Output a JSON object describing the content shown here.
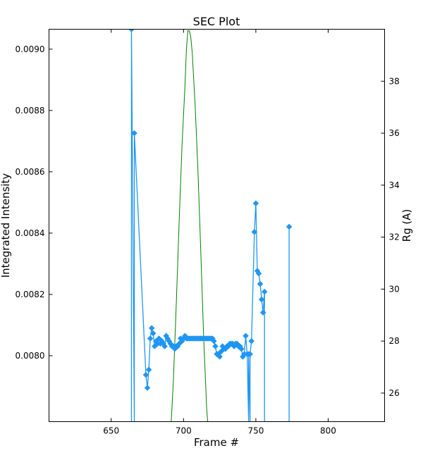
{
  "chart_data": {
    "type": "line",
    "title": "SEC Plot",
    "xlabel": "Frame #",
    "ylabel_left": "Integrated Intensity",
    "ylabel_right": "Rg (A)",
    "xlim": [
      607,
      839
    ],
    "ylim_left": [
      0.007785,
      0.009065
    ],
    "ylim_right": [
      24.9,
      40.0
    ],
    "x_ticks": [
      {
        "value": 650,
        "label": "650"
      },
      {
        "value": 700,
        "label": "700"
      },
      {
        "value": 750,
        "label": "750"
      },
      {
        "value": 800,
        "label": "800"
      }
    ],
    "y_left_ticks": [
      {
        "value": 0.008,
        "label": "0.0080"
      },
      {
        "value": 0.0082,
        "label": "0.0082"
      },
      {
        "value": 0.0084,
        "label": "0.0084"
      },
      {
        "value": 0.0086,
        "label": "0.0086"
      },
      {
        "value": 0.0088,
        "label": "0.0088"
      },
      {
        "value": 0.009,
        "label": "0.0090"
      }
    ],
    "y_right_ticks": [
      {
        "value": 26,
        "label": "26"
      },
      {
        "value": 28,
        "label": "28"
      },
      {
        "value": 30,
        "label": "30"
      },
      {
        "value": 32,
        "label": "32"
      },
      {
        "value": 34,
        "label": "34"
      },
      {
        "value": 36,
        "label": "36"
      },
      {
        "value": 38,
        "label": "38"
      }
    ],
    "grid": false,
    "series": [
      {
        "axis": "left",
        "color": "#008000",
        "marker": "none",
        "x": [
          691,
          693,
          695,
          697,
          699,
          701,
          702,
          703,
          704,
          705,
          706,
          708,
          710,
          712,
          714,
          716,
          718
        ],
        "y": [
          0.00774,
          0.00792,
          0.00817,
          0.00844,
          0.00869,
          0.00888,
          0.009,
          0.00906,
          0.00906,
          0.00904,
          0.00899,
          0.00882,
          0.0086,
          0.00833,
          0.00805,
          0.00783,
          0.0077
        ]
      },
      {
        "axis": "right",
        "color": "#1f96f3",
        "marker": "diamond",
        "x": [
          664,
          664,
          666,
          666,
          674,
          675,
          676,
          677,
          678,
          679,
          680,
          681,
          682,
          683,
          684,
          685,
          686,
          687,
          688,
          689,
          690,
          691,
          692,
          693,
          694,
          695,
          696,
          697,
          698,
          699,
          700,
          701,
          702,
          703,
          704,
          705,
          706,
          707,
          708,
          709,
          710,
          711,
          712,
          713,
          714,
          715,
          716,
          717,
          718,
          719,
          720,
          721,
          722,
          723,
          724,
          725,
          726,
          727,
          728,
          729,
          730,
          731,
          732,
          733,
          734,
          735,
          736,
          737,
          738,
          739,
          740,
          741,
          742,
          743,
          744,
          745,
          745,
          746,
          746,
          747,
          749,
          750,
          751,
          752,
          753,
          754,
          755,
          756,
          756,
          773,
          773
        ],
        "y": [
          24.9,
          40.0,
          24.9,
          36.0,
          26.7,
          26.2,
          26.9,
          28.1,
          28.5,
          28.3,
          27.8,
          28.0,
          27.9,
          28.1,
          27.9,
          28.0,
          27.9,
          27.8,
          28.2,
          28.1,
          28.0,
          27.9,
          27.8,
          27.8,
          27.7,
          27.8,
          27.8,
          27.9,
          28.1,
          28.0,
          28.1,
          28.2,
          28.1,
          28.1,
          28.1,
          28.1,
          28.1,
          28.1,
          28.1,
          28.1,
          28.1,
          28.1,
          28.1,
          28.1,
          28.1,
          28.1,
          28.1,
          28.1,
          28.1,
          28.1,
          28.1,
          28.0,
          27.8,
          27.5,
          27.5,
          27.4,
          27.6,
          27.8,
          27.7,
          27.7,
          27.8,
          27.8,
          27.9,
          27.9,
          27.9,
          27.8,
          27.9,
          27.9,
          27.8,
          27.8,
          27.7,
          27.4,
          27.5,
          28.2,
          27.5,
          24.9,
          27.5,
          24.9,
          27.5,
          28.0,
          32.2,
          33.3,
          30.7,
          30.6,
          30.2,
          29.6,
          29.1,
          29.9,
          24.9,
          24.9,
          32.4
        ]
      }
    ]
  }
}
